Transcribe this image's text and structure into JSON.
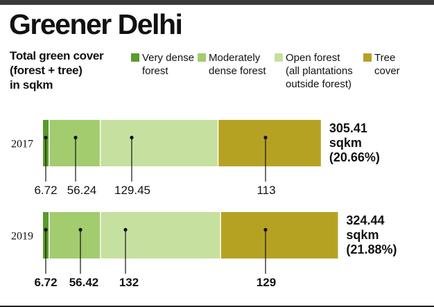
{
  "title": "Greener Delhi",
  "subtitle": "Total green cover\n(forest + tree)\nin sqkm",
  "legend": [
    {
      "label": "Very dense\nforest",
      "color": "#5a9a2e"
    },
    {
      "label": "Moderately\ndense forest",
      "color": "#a2cc6e"
    },
    {
      "label": "Open forest\n(all plantations\noutside forest)",
      "color": "#c6e0a0"
    },
    {
      "label": "Tree\ncover",
      "color": "#b6a222"
    }
  ],
  "chart_data": {
    "type": "bar",
    "orientation": "horizontal",
    "stacked": true,
    "categories": [
      "2017",
      "2019"
    ],
    "series": [
      {
        "name": "Very dense forest",
        "values": [
          6.72,
          6.72
        ],
        "labels": [
          "6.72",
          "6.72"
        ]
      },
      {
        "name": "Moderately dense forest",
        "values": [
          56.24,
          56.42
        ],
        "labels": [
          "56.24",
          "56.42"
        ]
      },
      {
        "name": "Open forest (all plantations outside forest)",
        "values": [
          129.45,
          132
        ],
        "labels": [
          "129.45",
          "132"
        ]
      },
      {
        "name": "Tree cover",
        "values": [
          113,
          129
        ],
        "labels": [
          "113",
          "129"
        ]
      }
    ],
    "totals": [
      {
        "value": "305.41",
        "unit": "sqkm",
        "percent": "(20.66%)"
      },
      {
        "value": "324.44",
        "unit": "sqkm",
        "percent": "(21.88%)"
      }
    ],
    "label_bold": [
      false,
      true
    ],
    "total_bold": [
      true,
      true
    ]
  }
}
